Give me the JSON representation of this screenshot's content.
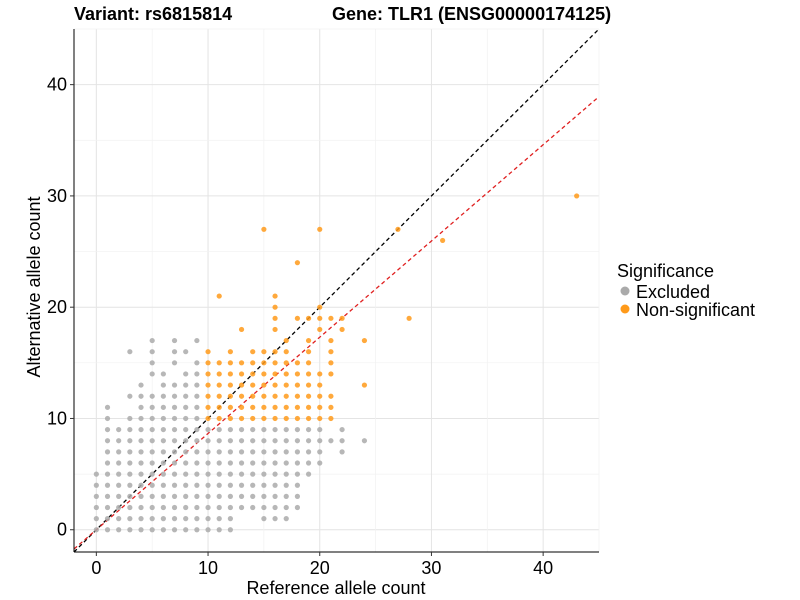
{
  "chart_data": {
    "type": "scatter",
    "title_left": "Variant: rs6815814",
    "title_right": "Gene: TLR1 (ENSG00000174125)",
    "xlabel": "Reference allele count",
    "ylabel": "Alternative allele count",
    "xlim": [
      -2,
      45
    ],
    "ylim": [
      -2,
      45
    ],
    "x_ticks": [
      0,
      10,
      20,
      30,
      40
    ],
    "y_ticks": [
      0,
      10,
      20,
      30,
      40
    ],
    "grid": true,
    "legend": {
      "title": "Significance",
      "placement": "right",
      "entries": [
        {
          "name": "Excluded",
          "color": "#aaaaaa"
        },
        {
          "name": "Non-significant",
          "color": "#ff9a1a"
        }
      ]
    },
    "reference_lines": [
      {
        "label": "identity",
        "slope": 1,
        "intercept": 0,
        "color": "#000000",
        "dash": true
      },
      {
        "label": "fit",
        "slope": 0.865,
        "intercept": 0,
        "color": "#e02020",
        "dash": true
      }
    ],
    "series": [
      {
        "name": "Excluded",
        "color": "#aaaaaa",
        "points": [
          [
            0,
            0
          ],
          [
            1,
            0
          ],
          [
            2,
            0
          ],
          [
            3,
            0
          ],
          [
            4,
            0
          ],
          [
            5,
            0
          ],
          [
            6,
            0
          ],
          [
            7,
            0
          ],
          [
            8,
            0
          ],
          [
            9,
            0
          ],
          [
            10,
            0
          ],
          [
            11,
            0
          ],
          [
            12,
            0
          ],
          [
            0,
            1
          ],
          [
            1,
            1
          ],
          [
            2,
            1
          ],
          [
            3,
            1
          ],
          [
            4,
            1
          ],
          [
            5,
            1
          ],
          [
            6,
            1
          ],
          [
            7,
            1
          ],
          [
            8,
            1
          ],
          [
            9,
            1
          ],
          [
            10,
            1
          ],
          [
            11,
            1
          ],
          [
            12,
            1
          ],
          [
            15,
            1
          ],
          [
            16,
            1
          ],
          [
            17,
            1
          ],
          [
            0,
            2
          ],
          [
            1,
            2
          ],
          [
            2,
            2
          ],
          [
            3,
            2
          ],
          [
            4,
            2
          ],
          [
            5,
            2
          ],
          [
            6,
            2
          ],
          [
            7,
            2
          ],
          [
            8,
            2
          ],
          [
            9,
            2
          ],
          [
            10,
            2
          ],
          [
            11,
            2
          ],
          [
            12,
            2
          ],
          [
            13,
            2
          ],
          [
            14,
            2
          ],
          [
            15,
            2
          ],
          [
            16,
            2
          ],
          [
            17,
            2
          ],
          [
            18,
            2
          ],
          [
            0,
            3
          ],
          [
            1,
            3
          ],
          [
            2,
            3
          ],
          [
            3,
            3
          ],
          [
            4,
            3
          ],
          [
            5,
            3
          ],
          [
            6,
            3
          ],
          [
            7,
            3
          ],
          [
            8,
            3
          ],
          [
            9,
            3
          ],
          [
            10,
            3
          ],
          [
            11,
            3
          ],
          [
            12,
            3
          ],
          [
            13,
            3
          ],
          [
            14,
            3
          ],
          [
            15,
            3
          ],
          [
            16,
            3
          ],
          [
            17,
            3
          ],
          [
            18,
            3
          ],
          [
            0,
            4
          ],
          [
            1,
            4
          ],
          [
            2,
            4
          ],
          [
            3,
            4
          ],
          [
            4,
            4
          ],
          [
            5,
            4
          ],
          [
            6,
            4
          ],
          [
            7,
            4
          ],
          [
            8,
            4
          ],
          [
            9,
            4
          ],
          [
            10,
            4
          ],
          [
            11,
            4
          ],
          [
            12,
            4
          ],
          [
            13,
            4
          ],
          [
            14,
            4
          ],
          [
            15,
            4
          ],
          [
            16,
            4
          ],
          [
            17,
            4
          ],
          [
            18,
            4
          ],
          [
            0,
            5
          ],
          [
            1,
            5
          ],
          [
            2,
            5
          ],
          [
            3,
            5
          ],
          [
            4,
            5
          ],
          [
            5,
            5
          ],
          [
            6,
            5
          ],
          [
            7,
            5
          ],
          [
            8,
            5
          ],
          [
            9,
            5
          ],
          [
            10,
            5
          ],
          [
            11,
            5
          ],
          [
            12,
            5
          ],
          [
            13,
            5
          ],
          [
            14,
            5
          ],
          [
            15,
            5
          ],
          [
            16,
            5
          ],
          [
            17,
            5
          ],
          [
            18,
            5
          ],
          [
            19,
            5
          ],
          [
            1,
            6
          ],
          [
            2,
            6
          ],
          [
            3,
            6
          ],
          [
            4,
            6
          ],
          [
            5,
            6
          ],
          [
            6,
            6
          ],
          [
            7,
            6
          ],
          [
            8,
            6
          ],
          [
            9,
            6
          ],
          [
            10,
            6
          ],
          [
            11,
            6
          ],
          [
            12,
            6
          ],
          [
            13,
            6
          ],
          [
            14,
            6
          ],
          [
            15,
            6
          ],
          [
            16,
            6
          ],
          [
            17,
            6
          ],
          [
            18,
            6
          ],
          [
            19,
            6
          ],
          [
            20,
            6
          ],
          [
            1,
            7
          ],
          [
            2,
            7
          ],
          [
            3,
            7
          ],
          [
            4,
            7
          ],
          [
            5,
            7
          ],
          [
            6,
            7
          ],
          [
            7,
            7
          ],
          [
            8,
            7
          ],
          [
            9,
            7
          ],
          [
            10,
            7
          ],
          [
            11,
            7
          ],
          [
            12,
            7
          ],
          [
            13,
            7
          ],
          [
            14,
            7
          ],
          [
            15,
            7
          ],
          [
            16,
            7
          ],
          [
            17,
            7
          ],
          [
            18,
            7
          ],
          [
            19,
            7
          ],
          [
            20,
            7
          ],
          [
            22,
            7
          ],
          [
            1,
            8
          ],
          [
            2,
            8
          ],
          [
            3,
            8
          ],
          [
            4,
            8
          ],
          [
            5,
            8
          ],
          [
            6,
            8
          ],
          [
            7,
            8
          ],
          [
            8,
            8
          ],
          [
            9,
            8
          ],
          [
            10,
            8
          ],
          [
            11,
            8
          ],
          [
            12,
            8
          ],
          [
            13,
            8
          ],
          [
            14,
            8
          ],
          [
            15,
            8
          ],
          [
            16,
            8
          ],
          [
            17,
            8
          ],
          [
            18,
            8
          ],
          [
            19,
            8
          ],
          [
            20,
            8
          ],
          [
            21,
            8
          ],
          [
            22,
            8
          ],
          [
            24,
            8
          ],
          [
            1,
            9
          ],
          [
            2,
            9
          ],
          [
            3,
            9
          ],
          [
            4,
            9
          ],
          [
            5,
            9
          ],
          [
            6,
            9
          ],
          [
            7,
            9
          ],
          [
            8,
            9
          ],
          [
            9,
            9
          ],
          [
            10,
            9
          ],
          [
            11,
            9
          ],
          [
            12,
            9
          ],
          [
            13,
            9
          ],
          [
            14,
            9
          ],
          [
            15,
            9
          ],
          [
            16,
            9
          ],
          [
            17,
            9
          ],
          [
            18,
            9
          ],
          [
            19,
            9
          ],
          [
            20,
            9
          ],
          [
            22,
            9
          ],
          [
            1,
            10
          ],
          [
            3,
            10
          ],
          [
            4,
            10
          ],
          [
            5,
            10
          ],
          [
            6,
            10
          ],
          [
            7,
            10
          ],
          [
            8,
            10
          ],
          [
            9,
            10
          ],
          [
            1,
            11
          ],
          [
            4,
            11
          ],
          [
            5,
            11
          ],
          [
            6,
            11
          ],
          [
            7,
            11
          ],
          [
            8,
            11
          ],
          [
            9,
            11
          ],
          [
            3,
            12
          ],
          [
            4,
            12
          ],
          [
            5,
            12
          ],
          [
            6,
            12
          ],
          [
            7,
            12
          ],
          [
            8,
            12
          ],
          [
            9,
            12
          ],
          [
            4,
            13
          ],
          [
            6,
            13
          ],
          [
            7,
            13
          ],
          [
            8,
            13
          ],
          [
            9,
            13
          ],
          [
            5,
            14
          ],
          [
            6,
            14
          ],
          [
            8,
            14
          ],
          [
            9,
            14
          ],
          [
            5,
            15
          ],
          [
            7,
            15
          ],
          [
            9,
            15
          ],
          [
            3,
            16
          ],
          [
            5,
            16
          ],
          [
            7,
            16
          ],
          [
            8,
            16
          ],
          [
            5,
            17
          ],
          [
            7,
            17
          ],
          [
            9,
            17
          ]
        ]
      },
      {
        "name": "Non-significant",
        "color": "#ff9a1a",
        "points": [
          [
            10,
            10
          ],
          [
            11,
            10
          ],
          [
            12,
            10
          ],
          [
            13,
            10
          ],
          [
            14,
            10
          ],
          [
            15,
            10
          ],
          [
            16,
            10
          ],
          [
            17,
            10
          ],
          [
            18,
            10
          ],
          [
            19,
            10
          ],
          [
            20,
            10
          ],
          [
            21,
            10
          ],
          [
            10,
            11
          ],
          [
            11,
            11
          ],
          [
            12,
            11
          ],
          [
            13,
            11
          ],
          [
            14,
            11
          ],
          [
            15,
            11
          ],
          [
            16,
            11
          ],
          [
            17,
            11
          ],
          [
            18,
            11
          ],
          [
            19,
            11
          ],
          [
            20,
            11
          ],
          [
            21,
            11
          ],
          [
            10,
            12
          ],
          [
            11,
            12
          ],
          [
            12,
            12
          ],
          [
            13,
            12
          ],
          [
            14,
            12
          ],
          [
            15,
            12
          ],
          [
            16,
            12
          ],
          [
            17,
            12
          ],
          [
            18,
            12
          ],
          [
            19,
            12
          ],
          [
            20,
            12
          ],
          [
            21,
            12
          ],
          [
            10,
            13
          ],
          [
            11,
            13
          ],
          [
            12,
            13
          ],
          [
            13,
            13
          ],
          [
            14,
            13
          ],
          [
            15,
            13
          ],
          [
            16,
            13
          ],
          [
            17,
            13
          ],
          [
            18,
            13
          ],
          [
            19,
            13
          ],
          [
            20,
            13
          ],
          [
            24,
            13
          ],
          [
            10,
            14
          ],
          [
            11,
            14
          ],
          [
            12,
            14
          ],
          [
            13,
            14
          ],
          [
            14,
            14
          ],
          [
            15,
            14
          ],
          [
            16,
            14
          ],
          [
            17,
            14
          ],
          [
            18,
            14
          ],
          [
            19,
            14
          ],
          [
            20,
            14
          ],
          [
            21,
            14
          ],
          [
            10,
            15
          ],
          [
            11,
            15
          ],
          [
            12,
            15
          ],
          [
            13,
            15
          ],
          [
            14,
            15
          ],
          [
            15,
            15
          ],
          [
            16,
            15
          ],
          [
            17,
            15
          ],
          [
            18,
            15
          ],
          [
            19,
            15
          ],
          [
            21,
            15
          ],
          [
            10,
            16
          ],
          [
            12,
            16
          ],
          [
            14,
            16
          ],
          [
            15,
            16
          ],
          [
            16,
            16
          ],
          [
            17,
            16
          ],
          [
            19,
            16
          ],
          [
            21,
            16
          ],
          [
            17,
            17
          ],
          [
            19,
            17
          ],
          [
            21,
            17
          ],
          [
            24,
            17
          ],
          [
            13,
            18
          ],
          [
            16,
            18
          ],
          [
            20,
            18
          ],
          [
            22,
            18
          ],
          [
            16,
            19
          ],
          [
            18,
            19
          ],
          [
            19,
            19
          ],
          [
            20,
            19
          ],
          [
            21,
            19
          ],
          [
            22,
            19
          ],
          [
            28,
            19
          ],
          [
            16,
            20
          ],
          [
            20,
            20
          ],
          [
            11,
            21
          ],
          [
            16,
            21
          ],
          [
            18,
            24
          ],
          [
            31,
            26
          ],
          [
            15,
            27
          ],
          [
            20,
            27
          ],
          [
            27,
            27
          ],
          [
            43,
            30
          ]
        ]
      }
    ]
  }
}
